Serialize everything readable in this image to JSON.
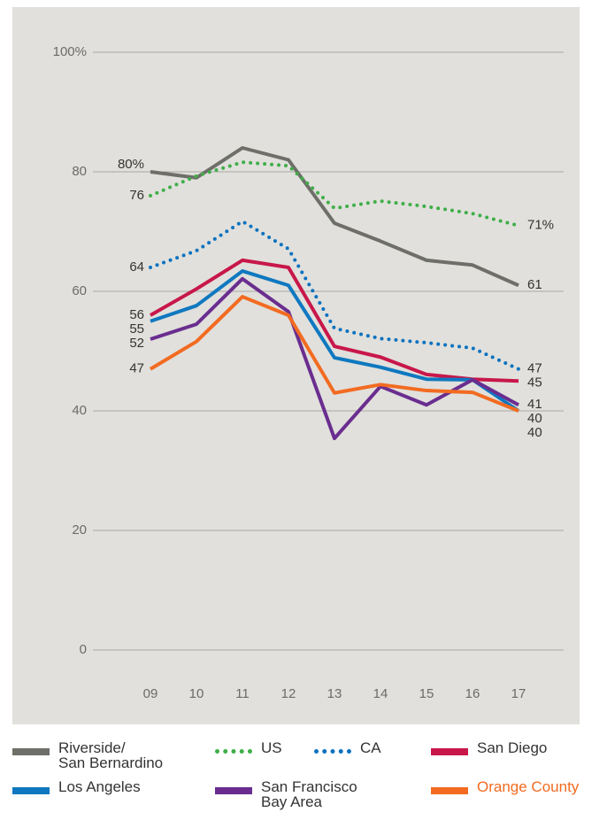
{
  "chart_data": {
    "type": "line",
    "categories": [
      "09",
      "10",
      "11",
      "12",
      "13",
      "14",
      "15",
      "16",
      "17"
    ],
    "ylim": [
      0,
      100
    ],
    "yticks": [
      0,
      20,
      40,
      60,
      80,
      {
        "value": 100,
        "label": "100%"
      }
    ],
    "grid": true,
    "legend": "bottom",
    "series": [
      {
        "name": "Riverside/\nSan Bernardino",
        "color": "#6e6f69",
        "style": "solid",
        "values": [
          80,
          79,
          84,
          82,
          71.4,
          68.4,
          65.2,
          64.4,
          61
        ],
        "value_labels": [
          "80%",
          null,
          null,
          null,
          null,
          null,
          null,
          null,
          "61"
        ]
      },
      {
        "name": "US",
        "color": "#3fae49",
        "style": "dotted",
        "values": [
          76,
          79.3,
          81.6,
          81,
          73.9,
          75.1,
          74.2,
          73,
          71
        ],
        "value_labels": [
          "76",
          null,
          null,
          null,
          null,
          null,
          null,
          null,
          "71%"
        ]
      },
      {
        "name": "CA",
        "color": "#0a72c0",
        "style": "dotted",
        "values": [
          64,
          66.8,
          71.7,
          67.1,
          53.8,
          52.1,
          51.4,
          50.5,
          47
        ],
        "value_labels": [
          "64",
          null,
          null,
          null,
          null,
          null,
          null,
          null,
          "47"
        ]
      },
      {
        "name": "San Diego",
        "color": "#c8174a",
        "style": "solid",
        "values": [
          56,
          60.4,
          65.2,
          64,
          50.8,
          49,
          46.1,
          45.3,
          45
        ],
        "value_labels": [
          "56",
          null,
          null,
          null,
          null,
          null,
          null,
          null,
          "45"
        ]
      },
      {
        "name": "Los Angeles",
        "color": "#0f78c0",
        "style": "solid",
        "values": [
          55,
          57.6,
          63.4,
          61,
          48.9,
          47.3,
          45.3,
          45.2,
          40
        ],
        "value_labels": [
          "55",
          null,
          null,
          null,
          null,
          null,
          null,
          null,
          "40"
        ]
      },
      {
        "name": "San Francisco\nBay Area",
        "color": "#6a2d8f",
        "style": "solid",
        "values": [
          52,
          54.5,
          62.1,
          56.6,
          35.4,
          44.1,
          41,
          45.2,
          41
        ],
        "value_labels": [
          "52",
          null,
          null,
          null,
          null,
          null,
          null,
          null,
          "41"
        ]
      },
      {
        "name": "Orange County",
        "color": "#f26b21",
        "style": "solid",
        "values": [
          47,
          51.6,
          59.1,
          56,
          43,
          44.4,
          43.4,
          43.1,
          40
        ],
        "value_labels": [
          "47",
          null,
          null,
          null,
          null,
          null,
          null,
          null,
          "40"
        ]
      }
    ]
  }
}
